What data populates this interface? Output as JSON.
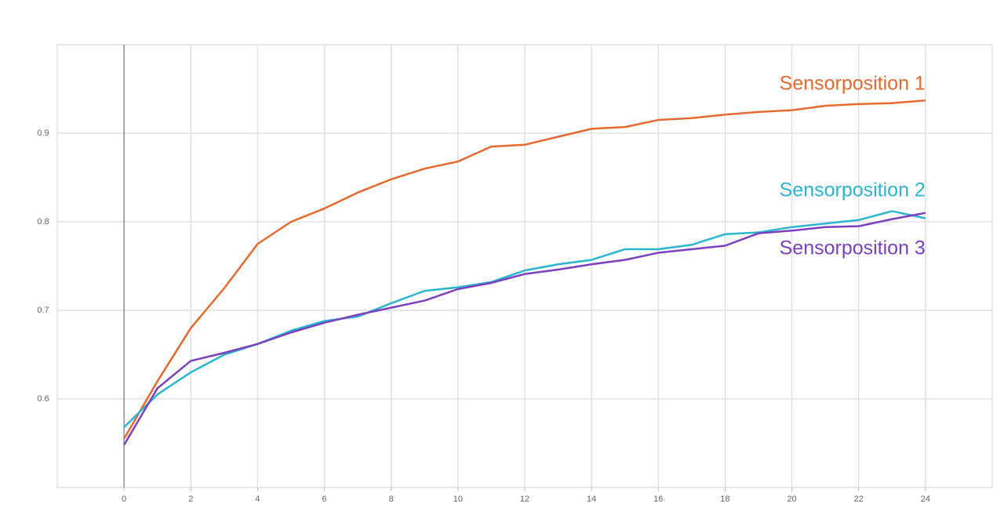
{
  "chart_data": {
    "type": "line",
    "x": [
      0,
      1,
      2,
      3,
      4,
      5,
      6,
      7,
      8,
      9,
      10,
      11,
      12,
      13,
      14,
      15,
      16,
      17,
      18,
      19,
      20,
      21,
      22,
      23,
      24
    ],
    "series": [
      {
        "name": "Sensorposition 1",
        "color": "#e8692e",
        "values": [
          0.555,
          0.62,
          0.68,
          0.725,
          0.775,
          0.8,
          0.815,
          0.833,
          0.848,
          0.86,
          0.868,
          0.885,
          0.887,
          0.896,
          0.905,
          0.907,
          0.915,
          0.917,
          0.921,
          0.924,
          0.926,
          0.931,
          0.933,
          0.934,
          0.937
        ]
      },
      {
        "name": "Sensorposition 2",
        "color": "#2bb5d0",
        "values": [
          0.568,
          0.605,
          0.63,
          0.65,
          0.662,
          0.677,
          0.688,
          0.693,
          0.708,
          0.722,
          0.726,
          0.732,
          0.745,
          0.752,
          0.757,
          0.769,
          0.769,
          0.774,
          0.786,
          0.788,
          0.794,
          0.798,
          0.802,
          0.812,
          0.804
        ]
      },
      {
        "name": "Sensorposition 3",
        "color": "#7b3fbf",
        "values": [
          0.548,
          0.612,
          0.643,
          0.652,
          0.662,
          0.675,
          0.686,
          0.695,
          0.703,
          0.711,
          0.724,
          0.731,
          0.741,
          0.746,
          0.752,
          0.757,
          0.765,
          0.769,
          0.773,
          0.787,
          0.79,
          0.794,
          0.795,
          0.803,
          0.81
        ]
      }
    ],
    "xlim": [
      -2,
      26
    ],
    "xticks": [
      0,
      2,
      4,
      6,
      8,
      10,
      12,
      14,
      16,
      18,
      20,
      22,
      24
    ],
    "ylim": [
      0.5,
      1.0
    ],
    "yticks": [
      0.6,
      0.7,
      0.8,
      0.9
    ],
    "grid": true
  }
}
